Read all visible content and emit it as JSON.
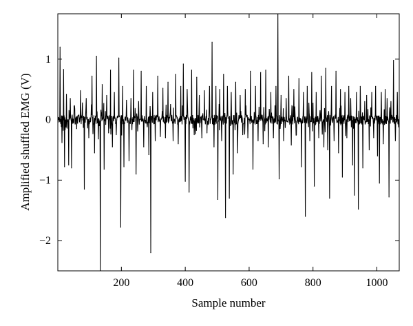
{
  "chart_data": {
    "type": "line",
    "xlabel": "Sample number",
    "ylabel": "Amplified shuffled EMG (V)",
    "xlim": [
      1,
      1070
    ],
    "ylim": [
      -2.5,
      1.75
    ],
    "xticks": [
      200,
      400,
      600,
      800,
      1000
    ],
    "yticks": [
      -2,
      -1,
      0,
      1
    ],
    "ytick_labels": [
      "−2",
      "−1",
      "0",
      "1"
    ],
    "grid": false,
    "series": [
      {
        "color": "#000000",
        "spikes": [
          {
            "x": 8,
            "y": 1.2
          },
          {
            "x": 14,
            "y": -0.38
          },
          {
            "x": 19,
            "y": 0.83
          },
          {
            "x": 22,
            "y": -0.78
          },
          {
            "x": 28,
            "y": 0.42
          },
          {
            "x": 35,
            "y": -0.75
          },
          {
            "x": 40,
            "y": 0.35
          },
          {
            "x": 44,
            "y": -0.8
          },
          {
            "x": 52,
            "y": 0.22
          },
          {
            "x": 60,
            "y": -0.15
          },
          {
            "x": 72,
            "y": 0.48
          },
          {
            "x": 84,
            "y": -1.15
          },
          {
            "x": 90,
            "y": 0.35
          },
          {
            "x": 98,
            "y": -0.3
          },
          {
            "x": 108,
            "y": 0.72
          },
          {
            "x": 116,
            "y": -0.55
          },
          {
            "x": 122,
            "y": 1.05
          },
          {
            "x": 128,
            "y": -0.32
          },
          {
            "x": 134,
            "y": -2.5
          },
          {
            "x": 140,
            "y": 0.58
          },
          {
            "x": 146,
            "y": -0.82
          },
          {
            "x": 154,
            "y": 0.4
          },
          {
            "x": 160,
            "y": -0.22
          },
          {
            "x": 166,
            "y": 0.82
          },
          {
            "x": 172,
            "y": -0.45
          },
          {
            "x": 178,
            "y": 0.45
          },
          {
            "x": 184,
            "y": -0.25
          },
          {
            "x": 192,
            "y": 1.02
          },
          {
            "x": 198,
            "y": -1.78
          },
          {
            "x": 204,
            "y": 0.55
          },
          {
            "x": 208,
            "y": -0.78
          },
          {
            "x": 216,
            "y": 0.32
          },
          {
            "x": 224,
            "y": -0.68
          },
          {
            "x": 230,
            "y": 0.35
          },
          {
            "x": 238,
            "y": 0.82
          },
          {
            "x": 246,
            "y": -0.9
          },
          {
            "x": 254,
            "y": 0.3
          },
          {
            "x": 262,
            "y": 0.8
          },
          {
            "x": 270,
            "y": -0.45
          },
          {
            "x": 278,
            "y": 0.55
          },
          {
            "x": 286,
            "y": -0.58
          },
          {
            "x": 292,
            "y": -2.2
          },
          {
            "x": 298,
            "y": 0.45
          },
          {
            "x": 306,
            "y": -0.35
          },
          {
            "x": 314,
            "y": 0.72
          },
          {
            "x": 322,
            "y": -0.28
          },
          {
            "x": 330,
            "y": 0.52
          },
          {
            "x": 338,
            "y": -0.3
          },
          {
            "x": 346,
            "y": 0.62
          },
          {
            "x": 354,
            "y": 0.25
          },
          {
            "x": 362,
            "y": -0.35
          },
          {
            "x": 370,
            "y": 0.75
          },
          {
            "x": 378,
            "y": -0.4
          },
          {
            "x": 386,
            "y": 0.55
          },
          {
            "x": 394,
            "y": 0.92
          },
          {
            "x": 400,
            "y": -1.02
          },
          {
            "x": 406,
            "y": 0.5
          },
          {
            "x": 412,
            "y": -1.2
          },
          {
            "x": 420,
            "y": 0.82
          },
          {
            "x": 428,
            "y": -0.25
          },
          {
            "x": 436,
            "y": 0.7
          },
          {
            "x": 444,
            "y": 0.4
          },
          {
            "x": 452,
            "y": -0.3
          },
          {
            "x": 460,
            "y": 0.48
          },
          {
            "x": 468,
            "y": -0.22
          },
          {
            "x": 476,
            "y": 0.55
          },
          {
            "x": 484,
            "y": 1.28
          },
          {
            "x": 490,
            "y": -0.45
          },
          {
            "x": 496,
            "y": 0.55
          },
          {
            "x": 502,
            "y": -1.32
          },
          {
            "x": 508,
            "y": 0.5
          },
          {
            "x": 514,
            "y": -0.35
          },
          {
            "x": 520,
            "y": 0.75
          },
          {
            "x": 526,
            "y": -1.62
          },
          {
            "x": 532,
            "y": 0.55
          },
          {
            "x": 538,
            "y": -1.3
          },
          {
            "x": 544,
            "y": 0.45
          },
          {
            "x": 550,
            "y": -0.9
          },
          {
            "x": 558,
            "y": 0.62
          },
          {
            "x": 564,
            "y": -0.55
          },
          {
            "x": 572,
            "y": 0.4
          },
          {
            "x": 580,
            "y": -0.25
          },
          {
            "x": 588,
            "y": 0.5
          },
          {
            "x": 596,
            "y": -0.3
          },
          {
            "x": 604,
            "y": 0.8
          },
          {
            "x": 612,
            "y": -0.82
          },
          {
            "x": 620,
            "y": 0.55
          },
          {
            "x": 628,
            "y": -0.35
          },
          {
            "x": 636,
            "y": 0.78
          },
          {
            "x": 644,
            "y": -0.4
          },
          {
            "x": 652,
            "y": 0.82
          },
          {
            "x": 660,
            "y": -0.45
          },
          {
            "x": 668,
            "y": 0.45
          },
          {
            "x": 676,
            "y": -0.3
          },
          {
            "x": 684,
            "y": 0.55
          },
          {
            "x": 690,
            "y": 1.75
          },
          {
            "x": 694,
            "y": -0.98
          },
          {
            "x": 700,
            "y": 0.4
          },
          {
            "x": 708,
            "y": -0.35
          },
          {
            "x": 716,
            "y": 0.35
          },
          {
            "x": 724,
            "y": 0.72
          },
          {
            "x": 732,
            "y": -0.42
          },
          {
            "x": 740,
            "y": 0.5
          },
          {
            "x": 748,
            "y": -0.25
          },
          {
            "x": 756,
            "y": 0.68
          },
          {
            "x": 764,
            "y": -0.78
          },
          {
            "x": 770,
            "y": 0.45
          },
          {
            "x": 776,
            "y": -1.6
          },
          {
            "x": 782,
            "y": 0.55
          },
          {
            "x": 790,
            "y": -0.35
          },
          {
            "x": 796,
            "y": 0.78
          },
          {
            "x": 804,
            "y": -1.1
          },
          {
            "x": 810,
            "y": 0.45
          },
          {
            "x": 818,
            "y": -0.3
          },
          {
            "x": 826,
            "y": 0.72
          },
          {
            "x": 834,
            "y": -0.45
          },
          {
            "x": 840,
            "y": 0.85
          },
          {
            "x": 846,
            "y": -0.5
          },
          {
            "x": 852,
            "y": -1.3
          },
          {
            "x": 858,
            "y": 0.55
          },
          {
            "x": 866,
            "y": -0.35
          },
          {
            "x": 872,
            "y": 0.8
          },
          {
            "x": 880,
            "y": -0.55
          },
          {
            "x": 886,
            "y": 0.5
          },
          {
            "x": 892,
            "y": -0.95
          },
          {
            "x": 900,
            "y": 0.45
          },
          {
            "x": 906,
            "y": -0.3
          },
          {
            "x": 912,
            "y": 0.55
          },
          {
            "x": 918,
            "y": 0.35
          },
          {
            "x": 924,
            "y": -0.75
          },
          {
            "x": 930,
            "y": -1.25
          },
          {
            "x": 936,
            "y": 0.45
          },
          {
            "x": 942,
            "y": -1.48
          },
          {
            "x": 948,
            "y": 0.55
          },
          {
            "x": 956,
            "y": -0.8
          },
          {
            "x": 962,
            "y": 0.3
          },
          {
            "x": 968,
            "y": 0.4
          },
          {
            "x": 976,
            "y": -0.5
          },
          {
            "x": 984,
            "y": 0.45
          },
          {
            "x": 990,
            "y": -0.3
          },
          {
            "x": 996,
            "y": 0.55
          },
          {
            "x": 1002,
            "y": -0.6
          },
          {
            "x": 1008,
            "y": -1.05
          },
          {
            "x": 1014,
            "y": 0.45
          },
          {
            "x": 1020,
            "y": -0.4
          },
          {
            "x": 1026,
            "y": 0.5
          },
          {
            "x": 1032,
            "y": 0.35
          },
          {
            "x": 1038,
            "y": -1.28
          },
          {
            "x": 1044,
            "y": 0.3
          },
          {
            "x": 1052,
            "y": 0.98
          },
          {
            "x": 1058,
            "y": -0.35
          },
          {
            "x": 1064,
            "y": 0.45
          },
          {
            "x": 1068,
            "y": -0.12
          }
        ]
      }
    ]
  }
}
